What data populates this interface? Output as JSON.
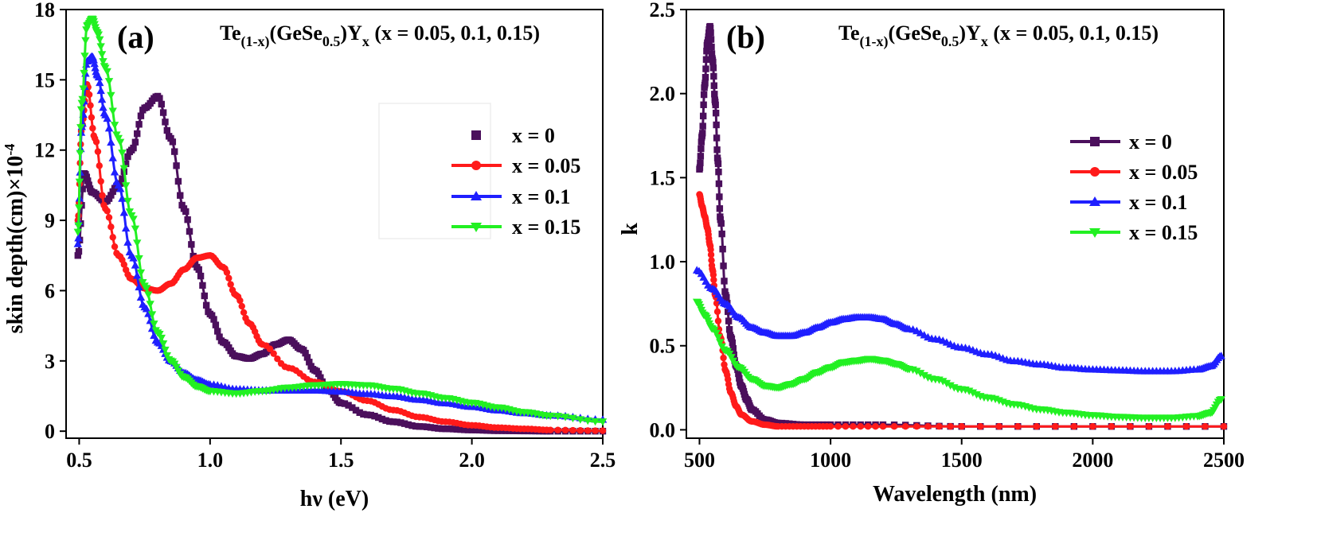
{
  "colors": {
    "x0": "#4b0f5c",
    "x005": "#ff1a1a",
    "x01": "#1f1fff",
    "x015": "#22f022"
  },
  "panels": [
    {
      "label": "(a)",
      "formula": {
        "pre": "Te",
        "sub1": "(1-x)",
        "mid": "(GeSe",
        "sub2": "0.5",
        "post": ")Y",
        "sub3": "x",
        "tail": " (x = 0.05, 0.1, 0.15)"
      },
      "legend": [
        "x = 0",
        "x = 0.05",
        "x = 0.1",
        "x = 0.15"
      ]
    },
    {
      "label": "(b)",
      "formula": {
        "pre": "Te",
        "sub1": "(1-x)",
        "mid": "(GeSe",
        "sub2": "0.5",
        "post": ")Y",
        "sub3": "x",
        "tail": " (x = 0.05, 0.1, 0.15)"
      },
      "legend": [
        "x = 0",
        "x = 0.05",
        "x = 0.1",
        "x = 0.15"
      ]
    }
  ],
  "chart_data": [
    {
      "type": "scatter",
      "title": "",
      "xlabel": "hν (eV)",
      "ylabel": "skin depth(cm)×10",
      "ylabel_sup": "-4",
      "xlim": [
        0.45,
        2.5
      ],
      "ylim": [
        -0.3,
        18
      ],
      "xticks": [
        0.5,
        1.0,
        1.5,
        2.0,
        2.5
      ],
      "xtick_labels": [
        "0.5",
        "1.0",
        "1.5",
        "2.0",
        "2.5"
      ],
      "yticks": [
        0,
        3,
        6,
        9,
        12,
        15,
        18
      ],
      "ytick_labels": [
        "0",
        "3",
        "6",
        "9",
        "12",
        "15",
        "18"
      ],
      "series": [
        {
          "name": "x = 0",
          "marker": "square",
          "x": [
            0.495,
            0.52,
            0.55,
            0.6,
            0.65,
            0.7,
            0.75,
            0.8,
            0.85,
            0.9,
            0.95,
            1.0,
            1.05,
            1.1,
            1.15,
            1.2,
            1.25,
            1.3,
            1.35,
            1.4,
            1.45,
            1.5,
            1.6,
            1.7,
            1.8,
            1.9,
            2.0,
            2.1,
            2.2,
            2.3,
            2.5
          ],
          "y": [
            7.5,
            11.0,
            10.2,
            9.8,
            10.5,
            12.0,
            13.8,
            14.3,
            12.5,
            9.5,
            7.0,
            5.0,
            3.8,
            3.2,
            3.1,
            3.3,
            3.7,
            3.9,
            3.5,
            2.6,
            1.8,
            1.2,
            0.7,
            0.4,
            0.2,
            0.1,
            0.05,
            0.02,
            0.01,
            0.0,
            0.0
          ]
        },
        {
          "name": "x = 0.05",
          "marker": "circle",
          "x": [
            0.495,
            0.51,
            0.53,
            0.56,
            0.6,
            0.65,
            0.7,
            0.75,
            0.8,
            0.85,
            0.9,
            0.95,
            1.0,
            1.05,
            1.1,
            1.15,
            1.2,
            1.3,
            1.4,
            1.5,
            1.6,
            1.7,
            1.8,
            1.9,
            2.0,
            2.1,
            2.2,
            2.3,
            2.5
          ],
          "y": [
            9.0,
            13.0,
            14.8,
            12.5,
            9.5,
            7.5,
            6.5,
            6.1,
            6.0,
            6.3,
            6.9,
            7.4,
            7.5,
            7.0,
            5.8,
            4.6,
            3.7,
            2.7,
            2.1,
            1.7,
            1.3,
            0.9,
            0.6,
            0.4,
            0.25,
            0.15,
            0.1,
            0.05,
            0.02
          ]
        },
        {
          "name": "x = 0.1",
          "marker": "triangle",
          "x": [
            0.495,
            0.51,
            0.53,
            0.55,
            0.57,
            0.6,
            0.65,
            0.7,
            0.75,
            0.8,
            0.85,
            0.9,
            0.95,
            1.0,
            1.1,
            1.2,
            1.3,
            1.4,
            1.5,
            1.6,
            1.7,
            1.8,
            1.9,
            2.0,
            2.1,
            2.2,
            2.3,
            2.5
          ],
          "y": [
            8.0,
            13.0,
            15.8,
            16.0,
            15.2,
            13.5,
            10.5,
            7.5,
            5.3,
            3.8,
            3.0,
            2.5,
            2.2,
            2.0,
            1.8,
            1.75,
            1.75,
            1.75,
            1.7,
            1.6,
            1.5,
            1.35,
            1.2,
            1.05,
            0.9,
            0.78,
            0.68,
            0.5
          ]
        },
        {
          "name": "x = 0.15",
          "marker": "triangle-down",
          "x": [
            0.495,
            0.51,
            0.53,
            0.55,
            0.57,
            0.6,
            0.65,
            0.7,
            0.75,
            0.8,
            0.85,
            0.9,
            0.95,
            1.0,
            1.1,
            1.2,
            1.3,
            1.4,
            1.5,
            1.6,
            1.7,
            1.8,
            1.9,
            2.0,
            2.1,
            2.2,
            2.3,
            2.5
          ],
          "y": [
            8.5,
            14.0,
            17.3,
            17.6,
            17.0,
            15.5,
            12.5,
            9.2,
            6.2,
            4.2,
            3.0,
            2.3,
            1.9,
            1.7,
            1.6,
            1.7,
            1.85,
            1.95,
            2.0,
            1.95,
            1.8,
            1.6,
            1.4,
            1.2,
            1.0,
            0.8,
            0.65,
            0.4
          ]
        }
      ]
    },
    {
      "type": "scatter",
      "title": "",
      "xlabel": "Wavelength (nm)",
      "ylabel": "k",
      "xlim": [
        450,
        2500
      ],
      "ylim": [
        -0.05,
        2.5
      ],
      "xticks": [
        500,
        1000,
        1500,
        2000,
        2500
      ],
      "xtick_labels": [
        "500",
        "1000",
        "1500",
        "2000",
        "2500"
      ],
      "yticks": [
        0.0,
        0.5,
        1.0,
        1.5,
        2.0,
        2.5
      ],
      "ytick_labels": [
        "0.0",
        "0.5",
        "1.0",
        "1.5",
        "2.0",
        "2.5"
      ],
      "series": [
        {
          "name": "x = 0",
          "marker": "square",
          "x": [
            500,
            510,
            520,
            530,
            540,
            550,
            560,
            570,
            580,
            600,
            620,
            640,
            660,
            680,
            700,
            750,
            800,
            900,
            1000,
            1200,
            1500,
            2000,
            2500
          ],
          "y": [
            1.55,
            1.75,
            2.05,
            2.3,
            2.4,
            2.2,
            1.95,
            1.6,
            1.25,
            0.8,
            0.55,
            0.38,
            0.26,
            0.18,
            0.12,
            0.06,
            0.04,
            0.03,
            0.03,
            0.03,
            0.02,
            0.02,
            0.02
          ]
        },
        {
          "name": "x = 0.05",
          "marker": "circle",
          "x": [
            500,
            510,
            520,
            530,
            540,
            550,
            560,
            580,
            600,
            620,
            640,
            660,
            700,
            750,
            800,
            900,
            1000,
            1200,
            1500,
            2000,
            2500
          ],
          "y": [
            1.4,
            1.33,
            1.27,
            1.2,
            1.1,
            0.95,
            0.8,
            0.55,
            0.35,
            0.22,
            0.14,
            0.09,
            0.05,
            0.03,
            0.02,
            0.02,
            0.02,
            0.02,
            0.02,
            0.02,
            0.02
          ]
        },
        {
          "name": "x = 0.1",
          "marker": "triangle",
          "x": [
            490,
            550,
            600,
            650,
            700,
            750,
            800,
            850,
            900,
            950,
            1000,
            1050,
            1100,
            1150,
            1200,
            1250,
            1300,
            1400,
            1500,
            1600,
            1700,
            1800,
            1900,
            2000,
            2100,
            2200,
            2300,
            2400,
            2450,
            2490
          ],
          "y": [
            0.95,
            0.84,
            0.75,
            0.67,
            0.61,
            0.58,
            0.56,
            0.56,
            0.58,
            0.61,
            0.64,
            0.66,
            0.67,
            0.67,
            0.66,
            0.63,
            0.6,
            0.54,
            0.49,
            0.45,
            0.41,
            0.39,
            0.37,
            0.36,
            0.355,
            0.35,
            0.35,
            0.36,
            0.38,
            0.44
          ]
        },
        {
          "name": "x = 0.15",
          "marker": "triangle-down",
          "x": [
            490,
            520,
            550,
            600,
            650,
            700,
            750,
            800,
            850,
            900,
            950,
            1000,
            1050,
            1100,
            1150,
            1200,
            1250,
            1300,
            1400,
            1500,
            1600,
            1700,
            1800,
            1900,
            2000,
            2100,
            2200,
            2300,
            2400,
            2450,
            2490
          ],
          "y": [
            0.76,
            0.68,
            0.6,
            0.47,
            0.37,
            0.3,
            0.26,
            0.25,
            0.27,
            0.3,
            0.34,
            0.37,
            0.4,
            0.41,
            0.42,
            0.41,
            0.39,
            0.36,
            0.3,
            0.24,
            0.19,
            0.15,
            0.12,
            0.1,
            0.085,
            0.075,
            0.07,
            0.07,
            0.08,
            0.1,
            0.18
          ]
        }
      ]
    }
  ]
}
